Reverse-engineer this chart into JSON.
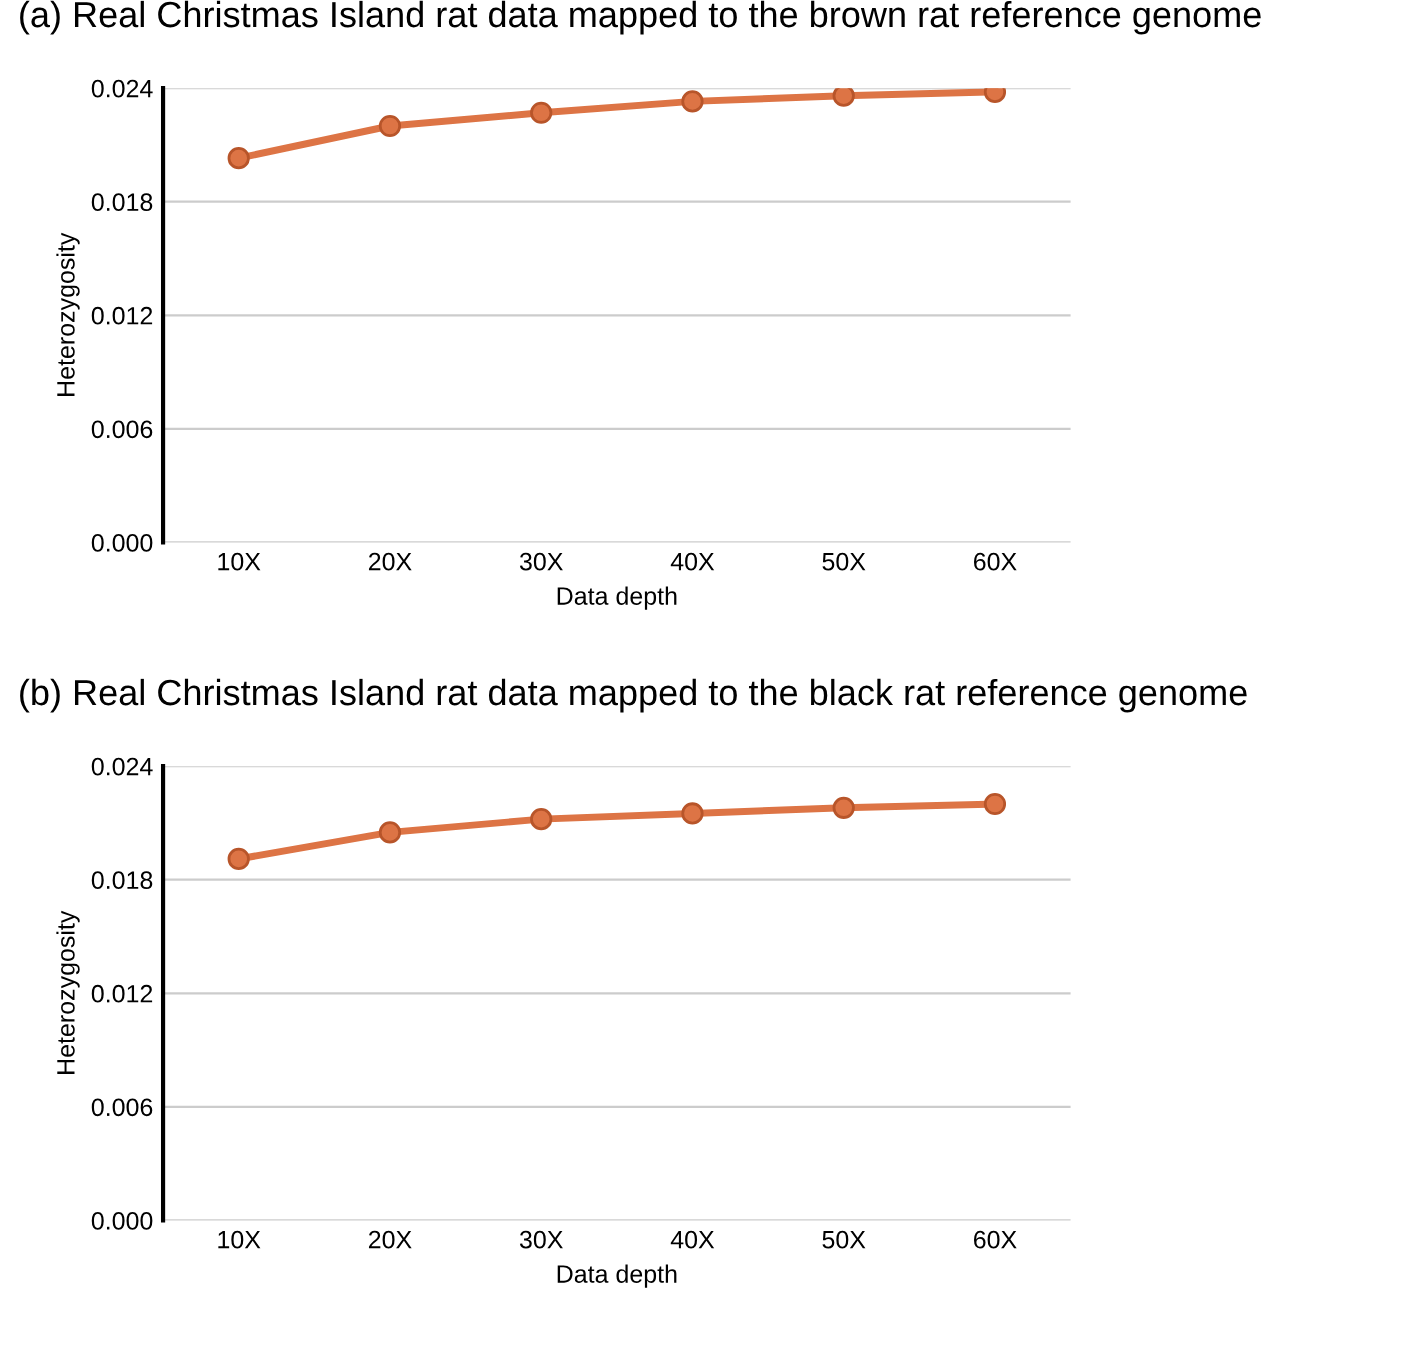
{
  "chart_data": [
    {
      "type": "line",
      "title": "(a) Real Christmas Island rat data mapped to the brown rat reference genome",
      "xlabel": "Data depth",
      "ylabel": "Heterozygosity",
      "categories": [
        "10X",
        "20X",
        "30X",
        "40X",
        "50X",
        "60X"
      ],
      "series": [
        {
          "color": "#dd7445",
          "values": [
            0.0203,
            0.022,
            0.0227,
            0.0233,
            0.0236,
            0.0238
          ]
        }
      ],
      "ylim": [
        0,
        0.024
      ],
      "yticks": [
        {
          "value": 0,
          "label": "0.000"
        },
        {
          "value": 0.006,
          "label": "0.006"
        },
        {
          "value": 0.012,
          "label": "0.012"
        },
        {
          "value": 0.018,
          "label": "0.018"
        },
        {
          "value": 0.024,
          "label": "0.024"
        }
      ],
      "grid": "y",
      "marker": "circle",
      "line_style": "solid"
    },
    {
      "type": "line",
      "title": "(b) Real Christmas Island rat data mapped to the black rat reference genome",
      "xlabel": "Data depth",
      "ylabel": "Heterozygosity",
      "categories": [
        "10X",
        "20X",
        "30X",
        "40X",
        "50X",
        "60X"
      ],
      "series": [
        {
          "color": "#dd7445",
          "values": [
            0.0191,
            0.0205,
            0.0212,
            0.0215,
            0.0218,
            0.022
          ]
        }
      ],
      "ylim": [
        0,
        0.024
      ],
      "yticks": [
        {
          "value": 0,
          "label": "0.000"
        },
        {
          "value": 0.006,
          "label": "0.006"
        },
        {
          "value": 0.012,
          "label": "0.012"
        },
        {
          "value": 0.018,
          "label": "0.018"
        },
        {
          "value": 0.024,
          "label": "0.024"
        }
      ],
      "grid": "y",
      "marker": "circle",
      "line_style": "solid"
    }
  ]
}
